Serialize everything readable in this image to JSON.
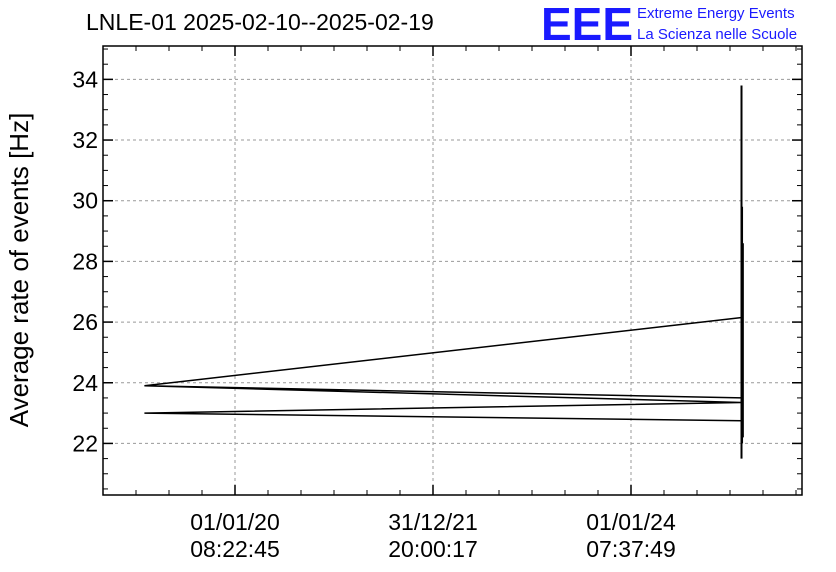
{
  "chart_data": {
    "type": "line",
    "title": "LNLE-01 2025-02-10--2025-02-19",
    "xlabel": "",
    "ylabel": "Average rate of events [Hz]",
    "ylim": [
      20.3,
      35.1
    ],
    "yticks": [
      22,
      24,
      26,
      28,
      30,
      32,
      34
    ],
    "ytick_labels": [
      "22",
      "24",
      "26",
      "28",
      "30",
      "32",
      "34"
    ],
    "xtick_labels": [
      {
        "date": "01/01/20",
        "time": "08:22:45"
      },
      {
        "date": "31/12/21",
        "time": "20:00:17"
      },
      {
        "date": "01/01/24",
        "time": "07:37:49"
      }
    ],
    "grid": true,
    "series": [
      {
        "color": "#000000",
        "points": [
          [
            "2025-02-14 00:00",
            26.15
          ],
          [
            "2019-02-01 00:00",
            23.9
          ],
          [
            "2025-02-12 00:00",
            23.5
          ],
          [
            "2019-02-01 00:00",
            23.9
          ],
          [
            "2025-02-13 00:00",
            23.35
          ],
          [
            "2019-02-01 00:00",
            23.0
          ],
          [
            "2025-02-15 00:00",
            22.75
          ]
        ]
      },
      {
        "color": "#000000",
        "vertical_band": [
          {
            "x": "2025-02-12 00:00",
            "ymin": 21.5,
            "ymax": 33.8
          },
          {
            "x": "2025-02-14 00:00",
            "ymin": 22.0,
            "ymax": 29.8
          },
          {
            "x": "2025-02-17 00:00",
            "ymin": 22.2,
            "ymax": 28.6
          }
        ]
      }
    ]
  },
  "logo": {
    "letters": "EEE",
    "line1": "Extreme Energy Events",
    "line2": "La Scienza nelle Scuole",
    "color": "#1a1aff"
  }
}
